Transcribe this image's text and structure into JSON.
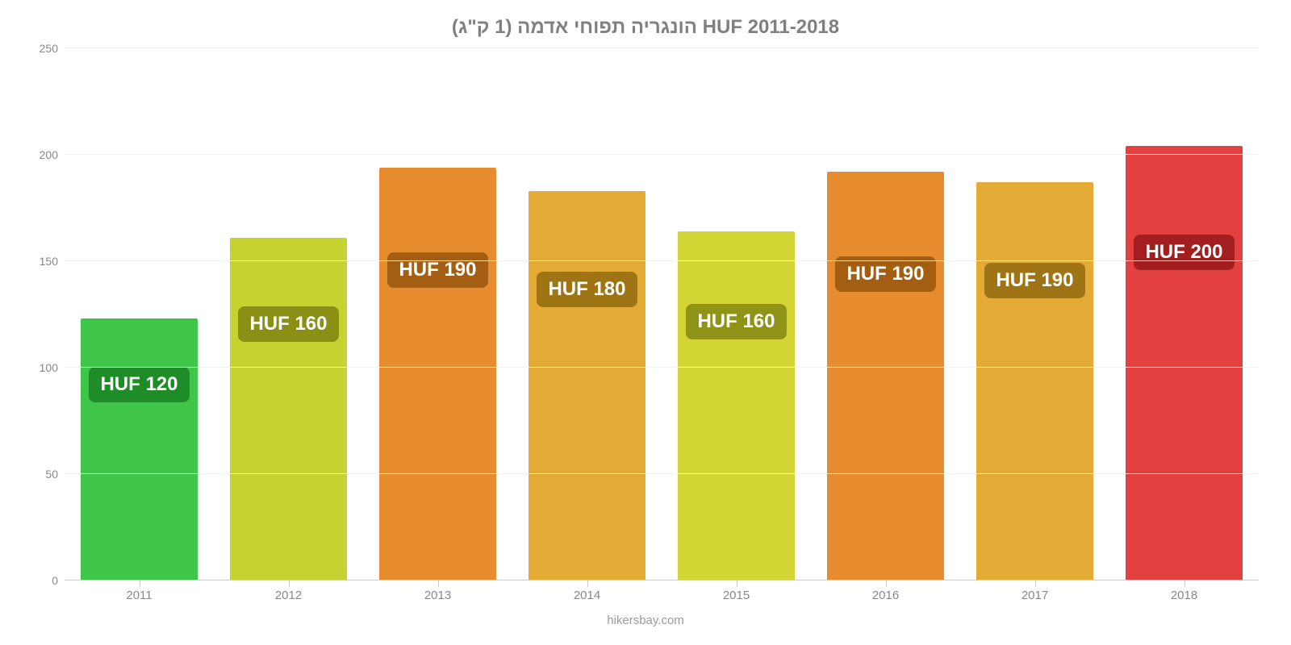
{
  "chart": {
    "type": "bar",
    "title": "הונגריה תפוחי אדמה (1 ק\"ג) HUF 2011-2018",
    "title_fontsize": 24,
    "title_color": "#808080",
    "source": "hikersbay.com",
    "source_color": "#9a9a9a",
    "background_color": "#ffffff",
    "grid_color": "#f2f2f2",
    "baseline_color": "#cccccc",
    "ylim": [
      0,
      250
    ],
    "ytick_step": 50,
    "yticks": [
      0,
      50,
      100,
      150,
      200,
      250
    ],
    "bar_width_pct": 78,
    "label_fontsize": 24,
    "axis_fontsize": 14,
    "categories": [
      "2011",
      "2012",
      "2013",
      "2014",
      "2015",
      "2016",
      "2017",
      "2018"
    ],
    "values": [
      123,
      161,
      194,
      183,
      164,
      192,
      187,
      204
    ],
    "display_labels": [
      "HUF 120",
      "HUF 160",
      "HUF 190",
      "HUF 180",
      "HUF 160",
      "HUF 190",
      "HUF 190",
      "HUF 200"
    ],
    "bar_colors": [
      "#3fc547",
      "#c6d22f",
      "#e78b2f",
      "#e3ab36",
      "#d3d534",
      "#e78b2f",
      "#e3ab36",
      "#e34040"
    ],
    "label_bg_colors": [
      "#1e8c27",
      "#8a8f15",
      "#a35e11",
      "#9f7414",
      "#8f9316",
      "#a35e11",
      "#9f7414",
      "#a31f1f"
    ],
    "label_offsets": [
      60,
      85,
      105,
      100,
      90,
      105,
      100,
      110
    ]
  }
}
